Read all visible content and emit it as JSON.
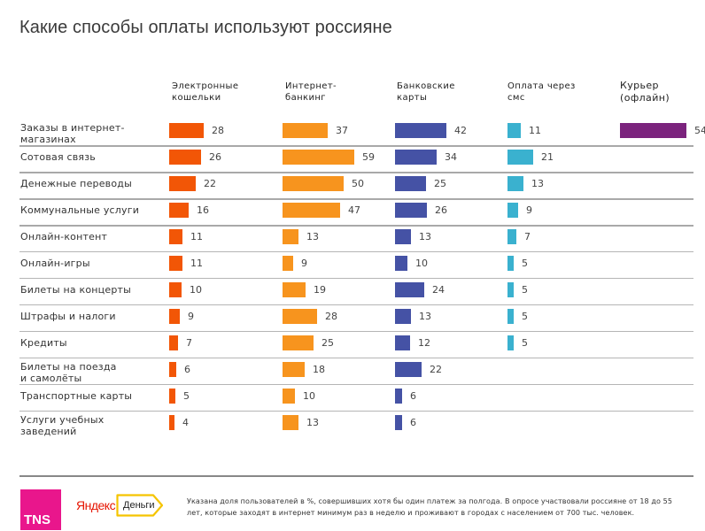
{
  "header": {
    "title": "Какие способы оплаты используют россияне"
  },
  "chart_data": {
    "type": "bar",
    "title": "Какие способы оплаты используют россияне",
    "xlabel": "",
    "ylabel": "",
    "unit": "%",
    "categories": [
      "Заказы в интернет-магазинах",
      "Сотовая связь",
      "Денежные переводы",
      "Коммунальные услуги",
      "Онлайн-контент",
      "Онлайн-игры",
      "Билеты на концерты",
      "Штрафы и налоги",
      "Кредиты",
      "Билеты на поезда и самолёты",
      "Транспортные карты",
      "Услуги учебных заведений"
    ],
    "category_lines": [
      [
        "Заказы в интернет-",
        "магазинах"
      ],
      [
        "Сотовая связь"
      ],
      [
        "Денежные переводы"
      ],
      [
        "Коммунальные услуги"
      ],
      [
        "Онлайн-контент"
      ],
      [
        "Онлайн-игры"
      ],
      [
        "Билеты на концерты"
      ],
      [
        "Штрафы и налоги"
      ],
      [
        "Кредиты"
      ],
      [
        "Билеты на поезда",
        "и самолёты"
      ],
      [
        "Транспортные карты"
      ],
      [
        "Услуги учебных",
        "заведений"
      ]
    ],
    "series": [
      {
        "name": "Электронные кошельки",
        "header_lines": [
          "Электронные",
          "кошельки"
        ],
        "color": "#f25606",
        "values": [
          28,
          26,
          22,
          16,
          11,
          11,
          10,
          9,
          7,
          6,
          5,
          4
        ]
      },
      {
        "name": "Интернет-банкинг",
        "header_lines": [
          "Интернет-",
          "банкинг"
        ],
        "color": "#f7941e",
        "values": [
          37,
          59,
          50,
          47,
          13,
          9,
          19,
          28,
          25,
          18,
          10,
          13
        ]
      },
      {
        "name": "Банковские карты",
        "header_lines": [
          "Банковские",
          "карты"
        ],
        "color": "#4552a5",
        "values": [
          42,
          34,
          25,
          26,
          13,
          10,
          24,
          13,
          12,
          22,
          6,
          6
        ]
      },
      {
        "name": "Оплата через смс",
        "header_lines": [
          "Оплата через",
          "смс"
        ],
        "color": "#3ab1cf",
        "values": [
          11,
          21,
          13,
          9,
          7,
          5,
          5,
          5,
          5,
          null,
          null,
          null
        ]
      },
      {
        "name": "Курьер (офлайн)",
        "header_lines": [
          "Курьер",
          "(офлайн)"
        ],
        "color": "#7b237d",
        "values": [
          54,
          null,
          null,
          null,
          null,
          null,
          null,
          null,
          null,
          null,
          null,
          null
        ]
      }
    ],
    "grid": false,
    "legend": "top"
  },
  "footer": {
    "tns_logo": "TNS",
    "yandex_logo": "Яндекс",
    "dengi_logo": "Деньги",
    "note_line1": "Указана доля пользователей в %, совершивших хотя бы один платеж за полгода. В опросе участвовали россияне от 18 до 55",
    "note_line2": "лет, которые заходят в интернет минимум раз в неделю и проживают в городах с населением от 700 тыс. человек."
  }
}
